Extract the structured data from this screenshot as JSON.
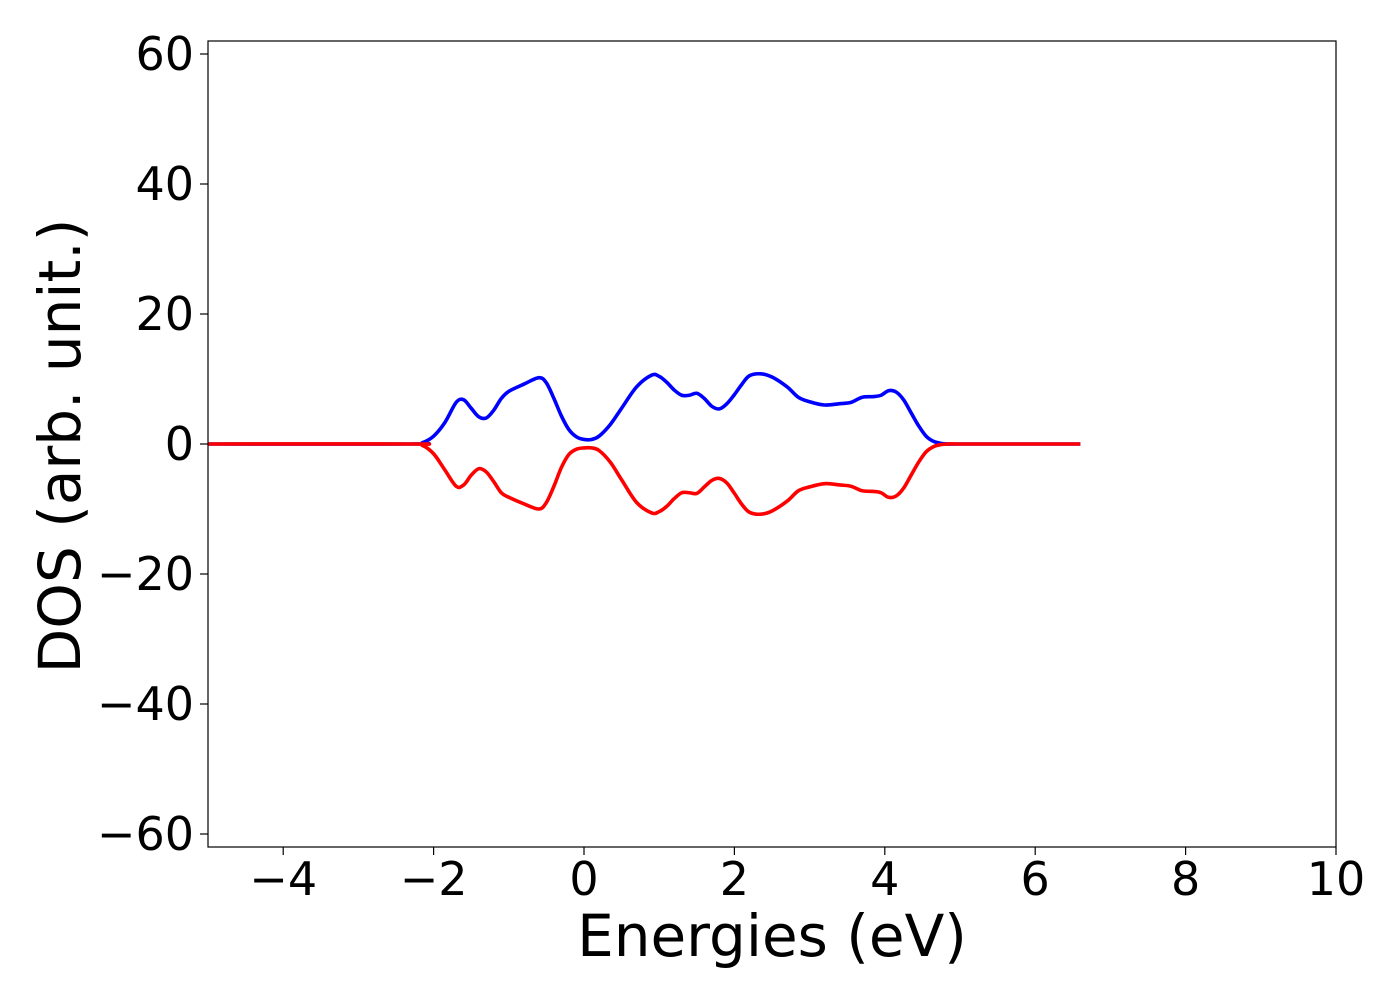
{
  "chart_data": {
    "type": "line",
    "title": "",
    "xlabel": "Energies (eV)",
    "ylabel": "DOS (arb. unit.)",
    "xlim": [
      -5,
      10
    ],
    "ylim": [
      -62,
      62
    ],
    "xticks": [
      -4,
      -2,
      0,
      2,
      4,
      6,
      8,
      10
    ],
    "yticks": [
      -60,
      -40,
      -20,
      0,
      20,
      40,
      60
    ],
    "grid": false,
    "legend": "none",
    "series": [
      {
        "color": "#0000ff",
        "x": [
          -5.0,
          -2.3,
          -2.15,
          -2.0,
          -1.85,
          -1.7,
          -1.6,
          -1.5,
          -1.4,
          -1.3,
          -1.2,
          -1.1,
          -1.0,
          -0.8,
          -0.6,
          -0.5,
          -0.4,
          -0.3,
          -0.2,
          -0.1,
          0.0,
          0.1,
          0.2,
          0.35,
          0.5,
          0.7,
          0.9,
          1.0,
          1.1,
          1.2,
          1.3,
          1.4,
          1.5,
          1.6,
          1.7,
          1.8,
          1.9,
          2.0,
          2.1,
          2.2,
          2.35,
          2.5,
          2.7,
          2.85,
          3.0,
          3.2,
          3.4,
          3.55,
          3.7,
          3.85,
          3.95,
          4.05,
          4.15,
          4.25,
          4.35,
          4.45,
          4.55,
          4.65,
          4.75,
          4.85,
          5.0,
          6.6
        ],
        "y": [
          0.0,
          0.0,
          0.2,
          1.2,
          3.3,
          6.4,
          6.8,
          5.5,
          4.2,
          4.0,
          5.2,
          7.0,
          8.1,
          9.2,
          10.2,
          9.4,
          7.0,
          4.3,
          2.2,
          1.1,
          0.7,
          0.7,
          1.2,
          3.0,
          5.5,
          8.8,
          10.6,
          10.4,
          9.5,
          8.3,
          7.5,
          7.5,
          7.8,
          7.0,
          5.8,
          5.4,
          6.2,
          7.6,
          9.2,
          10.5,
          10.8,
          10.3,
          8.8,
          7.2,
          6.5,
          6.0,
          6.2,
          6.4,
          7.2,
          7.3,
          7.5,
          8.2,
          8.0,
          6.8,
          4.8,
          2.8,
          1.2,
          0.4,
          0.1,
          0.0,
          0.0,
          0.0
        ]
      },
      {
        "color": "#ff0000",
        "x": [
          -5.0,
          -2.3,
          -2.15,
          -2.0,
          -1.85,
          -1.7,
          -1.6,
          -1.5,
          -1.4,
          -1.3,
          -1.2,
          -1.1,
          -1.0,
          -0.8,
          -0.6,
          -0.5,
          -0.4,
          -0.3,
          -0.2,
          -0.1,
          0.0,
          0.1,
          0.2,
          0.35,
          0.5,
          0.7,
          0.9,
          1.0,
          1.1,
          1.2,
          1.3,
          1.4,
          1.5,
          1.6,
          1.7,
          1.8,
          1.9,
          2.0,
          2.1,
          2.2,
          2.35,
          2.5,
          2.7,
          2.85,
          3.0,
          3.2,
          3.4,
          3.55,
          3.7,
          3.85,
          3.95,
          4.05,
          4.15,
          4.25,
          4.35,
          4.45,
          4.55,
          4.65,
          4.75,
          4.85,
          5.0,
          6.6
        ],
        "y": [
          0.0,
          0.0,
          -0.2,
          -1.5,
          -4.0,
          -6.5,
          -6.3,
          -4.8,
          -3.8,
          -4.3,
          -5.8,
          -7.5,
          -8.2,
          -9.2,
          -10.0,
          -9.0,
          -6.5,
          -3.6,
          -1.6,
          -0.8,
          -0.6,
          -0.6,
          -1.0,
          -2.8,
          -5.5,
          -9.0,
          -10.6,
          -10.4,
          -9.6,
          -8.4,
          -7.5,
          -7.5,
          -7.6,
          -6.6,
          -5.6,
          -5.3,
          -6.0,
          -7.6,
          -9.3,
          -10.5,
          -10.8,
          -10.3,
          -8.8,
          -7.2,
          -6.6,
          -6.1,
          -6.3,
          -6.5,
          -7.2,
          -7.3,
          -7.5,
          -8.2,
          -8.0,
          -6.8,
          -4.8,
          -2.8,
          -1.2,
          -0.4,
          -0.1,
          0.0,
          0.0,
          0.0
        ]
      }
    ]
  }
}
